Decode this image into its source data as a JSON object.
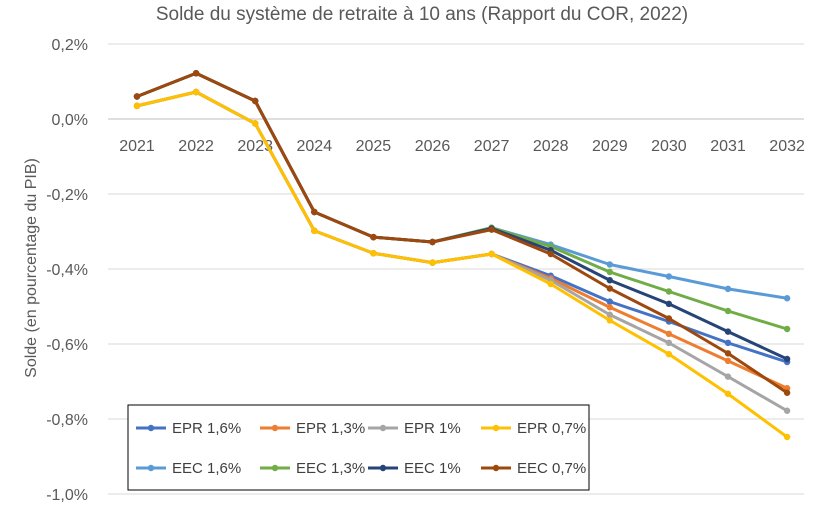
{
  "chart_data": {
    "type": "line",
    "title": "Solde du système de retraite à 10 ans (Rapport du COR, 2022)",
    "xlabel": "",
    "ylabel": "Solde (en pourcentage du PIB)",
    "ylim": [
      -1.0,
      0.2
    ],
    "yticks": [
      0.2,
      0.0,
      -0.2,
      -0.4,
      -0.6,
      -0.8,
      -1.0
    ],
    "ytick_labels": [
      "0,2%",
      "0,0%",
      "-0,2%",
      "-0,4%",
      "-0,6%",
      "-0,8%",
      "-1,0%"
    ],
    "categories": [
      "2021",
      "2022",
      "2023",
      "2024",
      "2025",
      "2026",
      "2027",
      "2028",
      "2029",
      "2030",
      "2031",
      "2032"
    ],
    "grid": "horizontal",
    "legend_position": "bottom-left",
    "series": [
      {
        "name": "EPR 1,6%",
        "color": "#4472C4",
        "values": [
          0.035,
          0.072,
          -0.012,
          -0.298,
          -0.358,
          -0.383,
          -0.36,
          -0.418,
          -0.487,
          -0.54,
          -0.597,
          -0.648
        ]
      },
      {
        "name": "EPR 1,3%",
        "color": "#ED7D31",
        "values": [
          0.035,
          0.072,
          -0.012,
          -0.298,
          -0.358,
          -0.383,
          -0.36,
          -0.425,
          -0.502,
          -0.573,
          -0.645,
          -0.718
        ]
      },
      {
        "name": "EPR 1%",
        "color": "#A5A5A5",
        "values": [
          0.035,
          0.072,
          -0.012,
          -0.298,
          -0.358,
          -0.383,
          -0.36,
          -0.43,
          -0.522,
          -0.597,
          -0.687,
          -0.778
        ]
      },
      {
        "name": "EPR 0,7%",
        "color": "#FFC000",
        "values": [
          0.035,
          0.072,
          -0.012,
          -0.298,
          -0.358,
          -0.383,
          -0.36,
          -0.44,
          -0.537,
          -0.627,
          -0.733,
          -0.848
        ]
      },
      {
        "name": "EEC 1,6%",
        "color": "#5B9BD5",
        "values": [
          0.06,
          0.122,
          0.048,
          -0.248,
          -0.315,
          -0.328,
          -0.29,
          -0.335,
          -0.388,
          -0.42,
          -0.453,
          -0.478
        ]
      },
      {
        "name": "EEC 1,3%",
        "color": "#70AD47",
        "values": [
          0.06,
          0.122,
          0.048,
          -0.248,
          -0.315,
          -0.328,
          -0.29,
          -0.34,
          -0.408,
          -0.46,
          -0.512,
          -0.56
        ]
      },
      {
        "name": "EEC 1%",
        "color": "#264478",
        "values": [
          0.06,
          0.122,
          0.048,
          -0.248,
          -0.315,
          -0.328,
          -0.292,
          -0.35,
          -0.43,
          -0.493,
          -0.567,
          -0.64
        ]
      },
      {
        "name": "EEC 0,7%",
        "color": "#9E480E",
        "values": [
          0.06,
          0.122,
          0.048,
          -0.248,
          -0.315,
          -0.328,
          -0.295,
          -0.36,
          -0.452,
          -0.532,
          -0.625,
          -0.73
        ]
      }
    ]
  }
}
